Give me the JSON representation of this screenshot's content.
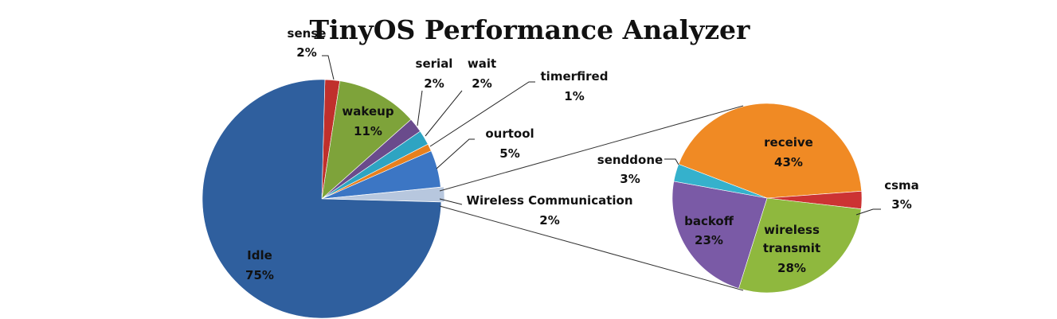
{
  "chart_data": [
    {
      "type": "pie",
      "title": "TinyOS Performance Analyzer",
      "slices": [
        {
          "label": "sense",
          "percent": 2,
          "value_label": "2%",
          "color": "#c0302c"
        },
        {
          "label": "wakeup",
          "percent": 11,
          "value_label": "11%",
          "color": "#7ea33a"
        },
        {
          "label": "serial",
          "percent": 2,
          "value_label": "2%",
          "color": "#6a4b8c"
        },
        {
          "label": "wait",
          "percent": 2,
          "value_label": "2%",
          "color": "#2ea4c2"
        },
        {
          "label": "timerfired",
          "percent": 1,
          "value_label": "1%",
          "color": "#e8801e"
        },
        {
          "label": "ourtool",
          "percent": 5,
          "value_label": "5%",
          "color": "#3c76c4"
        },
        {
          "label": "Wireless Communication",
          "percent": 2,
          "value_label": "2%",
          "color": "#b7c7de"
        },
        {
          "label": "Idle",
          "percent": 75,
          "value_label": "75%",
          "color": "#2f5f9e"
        }
      ],
      "exploded_slice": "Wireless Communication"
    },
    {
      "type": "pie",
      "title": "",
      "slices": [
        {
          "label": "receive",
          "percent": 43,
          "value_label": "43%",
          "color": "#f08a24"
        },
        {
          "label": "csma",
          "percent": 3,
          "value_label": "3%",
          "color": "#cc3333"
        },
        {
          "label": "wireless transmit",
          "percent": 28,
          "value_label": "28%",
          "color": "#8fb83e"
        },
        {
          "label": "backoff",
          "percent": 23,
          "value_label": "23%",
          "color": "#7a5aa6"
        },
        {
          "label": "senddone",
          "percent": 3,
          "value_label": "3%",
          "color": "#35b1cc"
        }
      ]
    }
  ]
}
